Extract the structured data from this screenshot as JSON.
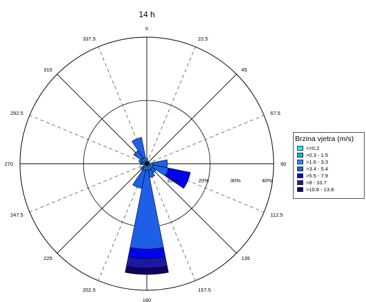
{
  "chart_data": {
    "type": "windrose",
    "title": "14 h",
    "direction_labels": [
      "0",
      "22.5",
      "45",
      "67.5",
      "90",
      "112.5",
      "135",
      "157.5",
      "180",
      "202.5",
      "225",
      "247.5",
      "270",
      "292.5",
      "315",
      "337.5"
    ],
    "direction_degrees": [
      0,
      22.5,
      45,
      67.5,
      90,
      112.5,
      135,
      157.5,
      180,
      202.5,
      225,
      247.5,
      270,
      292.5,
      315,
      337.5
    ],
    "radial_labels": [
      "10%",
      "20%",
      "30%",
      "40%"
    ],
    "radial_values": [
      10,
      20,
      30,
      40
    ],
    "r_max": 40,
    "grid": true,
    "legend_position": "right",
    "legend_title": "Brzina vjetra (m/s)",
    "bins": [
      {
        "label": "<=0.2",
        "color": "#00ffff"
      },
      {
        "label": ">0.3 - 1.5",
        "color": "#00bbee"
      },
      {
        "label": ">1.6 - 3.3",
        "color": "#1e90ff"
      },
      {
        "label": ">3.4 - 5.4",
        "color": "#1e5fe8"
      },
      {
        "label": ">5.5 - 7.9",
        "color": "#0000ee"
      },
      {
        "label": ">8 - 10.7",
        "color": "#1a1aa0"
      },
      {
        "label": ">10.8 - 13.8",
        "color": "#120060"
      }
    ],
    "series": [
      {
        "direction": 0,
        "values": [
          0,
          0.5,
          1.2,
          0,
          0,
          0,
          0
        ]
      },
      {
        "direction": 22.5,
        "values": [
          0,
          0.3,
          0.6,
          0,
          0,
          0,
          0
        ]
      },
      {
        "direction": 45,
        "values": [
          0,
          0.3,
          0.5,
          0,
          0,
          0,
          0
        ]
      },
      {
        "direction": 67.5,
        "values": [
          0,
          0.3,
          0.5,
          0,
          0,
          0,
          0
        ]
      },
      {
        "direction": 90,
        "values": [
          0,
          0.5,
          1.5,
          4.5,
          0,
          0,
          0
        ]
      },
      {
        "direction": 112.5,
        "values": [
          0,
          0.5,
          1.5,
          5.0,
          7.0,
          0,
          0
        ]
      },
      {
        "direction": 135,
        "values": [
          0,
          0.5,
          1.5,
          1.5,
          0,
          0,
          0
        ]
      },
      {
        "direction": 157.5,
        "values": [
          0,
          0.5,
          1.5,
          2.5,
          0,
          0,
          0
        ]
      },
      {
        "direction": 180,
        "values": [
          0,
          0.5,
          1.5,
          25.0,
          3.0,
          3.0,
          2.0
        ]
      },
      {
        "direction": 202.5,
        "values": [
          0,
          0.5,
          1.5,
          6.0,
          0,
          0,
          0
        ]
      },
      {
        "direction": 225,
        "values": [
          0,
          0.5,
          1.0,
          1.0,
          0,
          0,
          0
        ]
      },
      {
        "direction": 247.5,
        "values": [
          0,
          0.3,
          0.8,
          0,
          0,
          0,
          0
        ]
      },
      {
        "direction": 270,
        "values": [
          0,
          0.5,
          1.0,
          0.5,
          0,
          0,
          0
        ]
      },
      {
        "direction": 292.5,
        "values": [
          0,
          0.5,
          1.0,
          1.0,
          0,
          0,
          0
        ]
      },
      {
        "direction": 315,
        "values": [
          0,
          0.5,
          1.5,
          3.0,
          0,
          0,
          0
        ]
      },
      {
        "direction": 337.5,
        "values": [
          0,
          0.5,
          1.5,
          6.5,
          0,
          0,
          0
        ]
      }
    ]
  }
}
